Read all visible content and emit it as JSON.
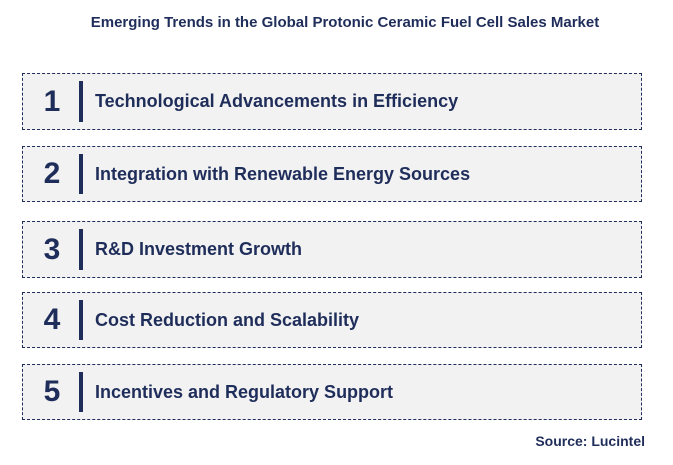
{
  "title": "Emerging Trends in the Global Protonic Ceramic Fuel Cell Sales Market",
  "trends": [
    {
      "number": "1",
      "label": "Technological Advancements in Efficiency"
    },
    {
      "number": "2",
      "label": "Integration with Renewable Energy Sources"
    },
    {
      "number": "3",
      "label": "R&D Investment Growth"
    },
    {
      "number": "4",
      "label": "Cost Reduction and Scalability"
    },
    {
      "number": "5",
      "label": "Incentives and Regulatory Support"
    }
  ],
  "source": "Source: Lucintel",
  "colors": {
    "text": "#1f2d5a",
    "box_background": "#f2f2f2"
  }
}
